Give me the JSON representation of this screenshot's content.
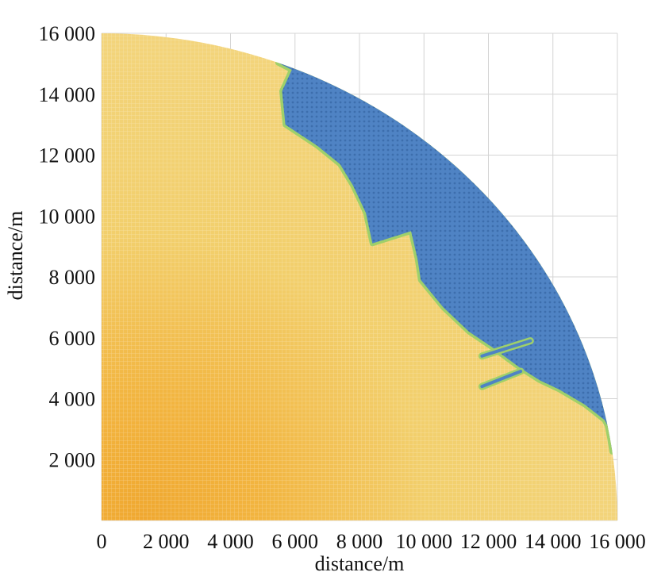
{
  "chart_data": {
    "type": "heatmap",
    "title": "",
    "xlabel": "distance/m",
    "ylabel": "distance/m",
    "xlim": [
      0,
      16000
    ],
    "ylim": [
      0,
      16000
    ],
    "x_ticks": [
      "0",
      "2 000",
      "4 000",
      "6 000",
      "8 000",
      "10 000",
      "12 000",
      "14 000",
      "16 000"
    ],
    "y_ticks": [
      "2 000",
      "4 000",
      "6 000",
      "8 000",
      "10 000",
      "12 000",
      "14 000",
      "16 000"
    ],
    "grid": true,
    "domain_radius": 16000,
    "colors": {
      "near_origin": "#f0a830",
      "main": "#f2cf6c",
      "region": "#4f83c4",
      "edge": "#9fd06a",
      "grid": "#d4d4d4"
    },
    "blue_region_boundary": [
      [
        5900,
        14800
      ],
      [
        5600,
        14100
      ],
      [
        5700,
        13000
      ],
      [
        6700,
        12300
      ],
      [
        7400,
        11700
      ],
      [
        7800,
        11000
      ],
      [
        8200,
        10100
      ],
      [
        8400,
        9100
      ],
      [
        9600,
        9500
      ],
      [
        9800,
        8600
      ],
      [
        9900,
        7900
      ],
      [
        10600,
        7000
      ],
      [
        11400,
        6200
      ],
      [
        12100,
        5700
      ],
      [
        13000,
        5000
      ],
      [
        13600,
        4600
      ],
      [
        14200,
        4300
      ],
      [
        15000,
        3800
      ],
      [
        15600,
        3300
      ],
      [
        15800,
        2900
      ]
    ],
    "stripes": [
      {
        "start": [
          11800,
          5400
        ],
        "end": [
          13300,
          5900
        ]
      },
      {
        "start": [
          11800,
          4400
        ],
        "end": [
          13000,
          4900
        ]
      }
    ]
  }
}
